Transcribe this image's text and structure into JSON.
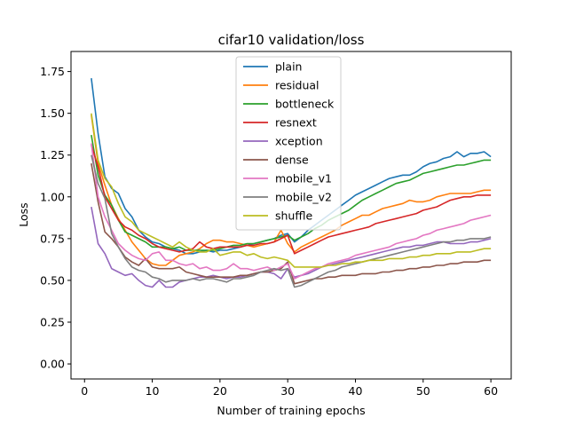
{
  "chart_data": {
    "type": "line",
    "title": "cifar10 validation/loss",
    "xlabel": "Number of training epochs",
    "ylabel": "Loss",
    "xlim": [
      -2.0,
      63.0
    ],
    "ylim": [
      -0.09,
      1.87
    ],
    "xticks": [
      0,
      10,
      20,
      30,
      40,
      50,
      60
    ],
    "yticks": [
      0.0,
      0.25,
      0.5,
      0.75,
      1.0,
      1.25,
      1.5,
      1.75
    ],
    "xtick_labels": [
      "0",
      "10",
      "20",
      "30",
      "40",
      "50",
      "60"
    ],
    "ytick_labels": [
      "0.00",
      "0.25",
      "0.50",
      "0.75",
      "1.00",
      "1.25",
      "1.50",
      "1.75"
    ],
    "grid": false,
    "legend_position": "top-center",
    "x": [
      1,
      2,
      3,
      4,
      5,
      6,
      7,
      8,
      9,
      10,
      11,
      12,
      13,
      14,
      15,
      16,
      17,
      18,
      19,
      20,
      21,
      22,
      23,
      24,
      25,
      26,
      27,
      28,
      29,
      30,
      31,
      32,
      33,
      34,
      35,
      36,
      37,
      38,
      39,
      40,
      41,
      42,
      43,
      44,
      45,
      46,
      47,
      48,
      49,
      50,
      51,
      52,
      53,
      54,
      55,
      56,
      57,
      58,
      59,
      60
    ],
    "series": [
      {
        "name": "plain",
        "color": "#1f77b4",
        "values": [
          1.71,
          1.38,
          1.12,
          1.05,
          1.02,
          0.93,
          0.88,
          0.8,
          0.76,
          0.73,
          0.72,
          0.7,
          0.69,
          0.68,
          0.66,
          0.66,
          0.67,
          0.68,
          0.67,
          0.68,
          0.68,
          0.69,
          0.7,
          0.71,
          0.72,
          0.73,
          0.74,
          0.75,
          0.77,
          0.78,
          0.73,
          0.76,
          0.8,
          0.83,
          0.86,
          0.89,
          0.92,
          0.95,
          0.98,
          1.01,
          1.03,
          1.05,
          1.07,
          1.09,
          1.11,
          1.12,
          1.13,
          1.13,
          1.15,
          1.18,
          1.2,
          1.21,
          1.23,
          1.24,
          1.27,
          1.24,
          1.26,
          1.26,
          1.27,
          1.24
        ]
      },
      {
        "name": "residual",
        "color": "#ff7f0e",
        "values": [
          1.49,
          1.2,
          1.07,
          0.95,
          0.87,
          0.8,
          0.73,
          0.68,
          0.63,
          0.6,
          0.59,
          0.59,
          0.62,
          0.65,
          0.66,
          0.67,
          0.69,
          0.72,
          0.74,
          0.74,
          0.73,
          0.73,
          0.72,
          0.71,
          0.7,
          0.71,
          0.72,
          0.73,
          0.8,
          0.72,
          0.67,
          0.7,
          0.72,
          0.74,
          0.76,
          0.78,
          0.8,
          0.83,
          0.85,
          0.87,
          0.89,
          0.89,
          0.91,
          0.93,
          0.94,
          0.95,
          0.96,
          0.98,
          0.97,
          0.97,
          0.98,
          1.0,
          1.01,
          1.02,
          1.02,
          1.02,
          1.02,
          1.03,
          1.04,
          1.04
        ]
      },
      {
        "name": "bottleneck",
        "color": "#2ca02c",
        "values": [
          1.37,
          1.13,
          1.01,
          0.95,
          0.86,
          0.79,
          0.77,
          0.75,
          0.73,
          0.7,
          0.7,
          0.7,
          0.69,
          0.7,
          0.68,
          0.68,
          0.68,
          0.68,
          0.68,
          0.69,
          0.7,
          0.71,
          0.71,
          0.72,
          0.72,
          0.73,
          0.74,
          0.75,
          0.76,
          0.77,
          0.74,
          0.76,
          0.78,
          0.81,
          0.83,
          0.86,
          0.88,
          0.9,
          0.92,
          0.95,
          0.98,
          1.0,
          1.02,
          1.04,
          1.06,
          1.08,
          1.09,
          1.1,
          1.12,
          1.14,
          1.15,
          1.16,
          1.17,
          1.18,
          1.19,
          1.19,
          1.2,
          1.21,
          1.22,
          1.22
        ]
      },
      {
        "name": "resnext",
        "color": "#d62728",
        "values": [
          1.31,
          1.18,
          1.0,
          0.93,
          0.86,
          0.82,
          0.8,
          0.77,
          0.75,
          0.72,
          0.7,
          0.69,
          0.68,
          0.67,
          0.68,
          0.69,
          0.73,
          0.7,
          0.69,
          0.7,
          0.7,
          0.7,
          0.7,
          0.71,
          0.71,
          0.72,
          0.72,
          0.73,
          0.75,
          0.77,
          0.66,
          0.68,
          0.7,
          0.72,
          0.74,
          0.76,
          0.77,
          0.78,
          0.79,
          0.8,
          0.81,
          0.82,
          0.84,
          0.85,
          0.86,
          0.87,
          0.88,
          0.89,
          0.9,
          0.92,
          0.93,
          0.94,
          0.96,
          0.98,
          0.99,
          1.0,
          1.0,
          1.01,
          1.01,
          1.01
        ]
      },
      {
        "name": "xception",
        "color": "#9467bd",
        "values": [
          0.94,
          0.72,
          0.66,
          0.57,
          0.55,
          0.53,
          0.54,
          0.5,
          0.47,
          0.46,
          0.5,
          0.46,
          0.46,
          0.49,
          0.5,
          0.51,
          0.52,
          0.52,
          0.53,
          0.52,
          0.51,
          0.52,
          0.52,
          0.53,
          0.54,
          0.55,
          0.55,
          0.54,
          0.51,
          0.57,
          0.52,
          0.53,
          0.54,
          0.56,
          0.58,
          0.59,
          0.6,
          0.61,
          0.62,
          0.63,
          0.64,
          0.65,
          0.66,
          0.67,
          0.68,
          0.69,
          0.7,
          0.7,
          0.71,
          0.71,
          0.72,
          0.73,
          0.73,
          0.72,
          0.72,
          0.72,
          0.73,
          0.73,
          0.74,
          0.75
        ]
      },
      {
        "name": "dense",
        "color": "#8c564b",
        "values": [
          1.2,
          0.97,
          0.79,
          0.75,
          0.7,
          0.64,
          0.61,
          0.59,
          0.63,
          0.58,
          0.57,
          0.57,
          0.57,
          0.58,
          0.55,
          0.54,
          0.53,
          0.52,
          0.52,
          0.52,
          0.52,
          0.52,
          0.53,
          0.53,
          0.54,
          0.55,
          0.55,
          0.56,
          0.57,
          0.61,
          0.48,
          0.49,
          0.5,
          0.51,
          0.51,
          0.52,
          0.52,
          0.53,
          0.53,
          0.53,
          0.54,
          0.54,
          0.54,
          0.55,
          0.55,
          0.56,
          0.56,
          0.57,
          0.57,
          0.58,
          0.58,
          0.59,
          0.59,
          0.6,
          0.6,
          0.61,
          0.61,
          0.61,
          0.62,
          0.62
        ]
      },
      {
        "name": "mobile_v1",
        "color": "#e377c2",
        "values": [
          1.32,
          1.0,
          0.88,
          0.8,
          0.72,
          0.68,
          0.65,
          0.63,
          0.62,
          0.66,
          0.67,
          0.62,
          0.62,
          0.6,
          0.59,
          0.6,
          0.57,
          0.58,
          0.56,
          0.56,
          0.57,
          0.6,
          0.57,
          0.57,
          0.56,
          0.57,
          0.58,
          0.56,
          0.58,
          0.6,
          0.51,
          0.53,
          0.55,
          0.57,
          0.58,
          0.6,
          0.61,
          0.62,
          0.63,
          0.65,
          0.66,
          0.67,
          0.68,
          0.69,
          0.7,
          0.72,
          0.73,
          0.74,
          0.75,
          0.77,
          0.78,
          0.8,
          0.81,
          0.82,
          0.83,
          0.84,
          0.86,
          0.87,
          0.88,
          0.89
        ]
      },
      {
        "name": "mobile_v2",
        "color": "#7f7f7f",
        "values": [
          1.25,
          1.08,
          0.99,
          0.78,
          0.7,
          0.63,
          0.58,
          0.56,
          0.55,
          0.52,
          0.51,
          0.49,
          0.5,
          0.5,
          0.5,
          0.51,
          0.5,
          0.51,
          0.51,
          0.5,
          0.49,
          0.51,
          0.51,
          0.52,
          0.53,
          0.55,
          0.56,
          0.57,
          0.56,
          0.57,
          0.46,
          0.47,
          0.49,
          0.51,
          0.53,
          0.55,
          0.56,
          0.58,
          0.59,
          0.6,
          0.61,
          0.62,
          0.63,
          0.64,
          0.65,
          0.66,
          0.67,
          0.68,
          0.69,
          0.7,
          0.71,
          0.72,
          0.73,
          0.73,
          0.74,
          0.74,
          0.75,
          0.75,
          0.75,
          0.76
        ]
      },
      {
        "name": "shuffle",
        "color": "#bcbd22",
        "values": [
          1.5,
          1.22,
          1.11,
          1.06,
          0.96,
          0.88,
          0.85,
          0.8,
          0.78,
          0.76,
          0.74,
          0.72,
          0.7,
          0.73,
          0.7,
          0.68,
          0.67,
          0.67,
          0.69,
          0.65,
          0.66,
          0.67,
          0.67,
          0.65,
          0.66,
          0.64,
          0.63,
          0.64,
          0.63,
          0.62,
          0.58,
          0.58,
          0.58,
          0.58,
          0.58,
          0.59,
          0.59,
          0.6,
          0.6,
          0.61,
          0.61,
          0.62,
          0.62,
          0.62,
          0.63,
          0.63,
          0.63,
          0.64,
          0.64,
          0.65,
          0.65,
          0.66,
          0.66,
          0.66,
          0.67,
          0.67,
          0.67,
          0.68,
          0.69,
          0.69
        ]
      }
    ]
  }
}
